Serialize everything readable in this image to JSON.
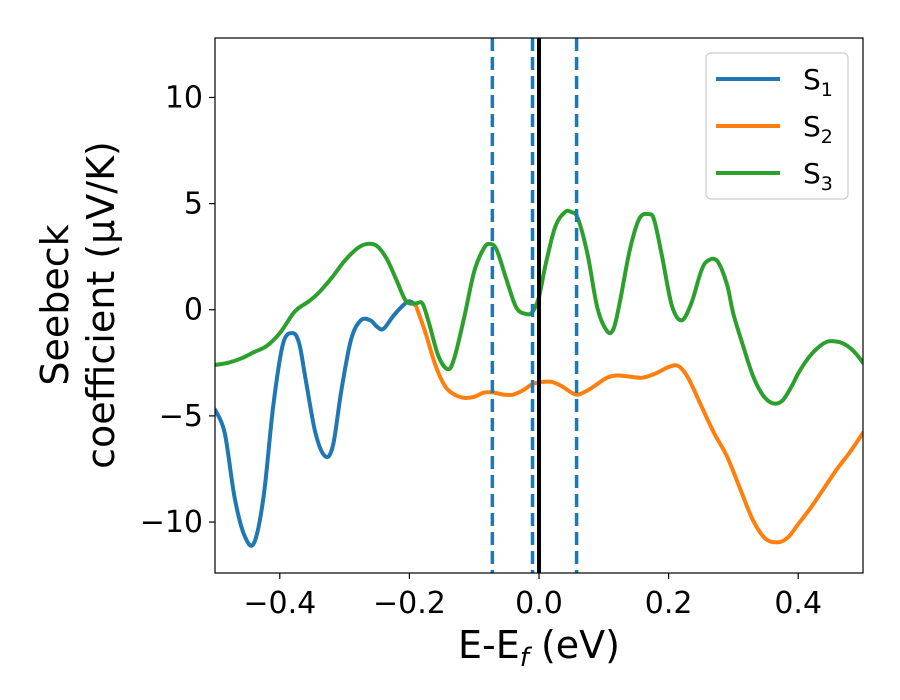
{
  "chart_data": {
    "type": "line",
    "xlabel": {
      "main": "E-E",
      "sub": "f",
      "unit": " (eV)"
    },
    "ylabel": {
      "line1": "Seebeck",
      "line2": "coefficient  (μV/K)"
    },
    "xlim": [
      -0.5,
      0.5
    ],
    "ylim": [
      -12.4,
      12.8
    ],
    "xticks": [
      -0.4,
      -0.2,
      0.0,
      0.2,
      0.4
    ],
    "xtick_labels": [
      "−0.4",
      "−0.2",
      "0.0",
      "0.2",
      "0.4"
    ],
    "yticks": [
      -10,
      -5,
      0,
      5,
      10
    ],
    "ytick_labels": [
      "−10",
      "−5",
      "0",
      "5",
      "10"
    ],
    "grid": false,
    "legend_position": "top-right",
    "vertical_lines": [
      {
        "x": -0.072,
        "style": "dashed",
        "color": "#1f77b4"
      },
      {
        "x": -0.01,
        "style": "dashed",
        "color": "#1f77b4"
      },
      {
        "x": 0.058,
        "style": "dashed",
        "color": "#1f77b4"
      },
      {
        "x": 0.0,
        "style": "solid",
        "color": "#000000"
      }
    ],
    "series": [
      {
        "name": "S",
        "sub": "1",
        "color": "#1f77b4",
        "x": [
          -0.5,
          -0.485,
          -0.47,
          -0.455,
          -0.44,
          -0.425,
          -0.41,
          -0.395,
          -0.38,
          -0.37,
          -0.36,
          -0.345,
          -0.33,
          -0.318,
          -0.305,
          -0.29,
          -0.275,
          -0.26,
          -0.25,
          -0.24,
          -0.225,
          -0.21,
          -0.2,
          -0.19
        ],
        "y": [
          -4.7,
          -5.8,
          -8.8,
          -10.6,
          -11.0,
          -8.8,
          -4.5,
          -1.6,
          -1.1,
          -1.6,
          -3.3,
          -5.8,
          -6.9,
          -6.4,
          -3.8,
          -1.4,
          -0.5,
          -0.5,
          -0.8,
          -0.9,
          -0.3,
          0.2,
          0.4,
          0.2
        ]
      },
      {
        "name": "S",
        "sub": "2",
        "color": "#ff7f0e",
        "x": [
          -0.19,
          -0.175,
          -0.16,
          -0.145,
          -0.13,
          -0.115,
          -0.1,
          -0.085,
          -0.07,
          -0.055,
          -0.04,
          -0.025,
          -0.01,
          0.005,
          0.02,
          0.035,
          0.05,
          0.06,
          0.075,
          0.09,
          0.105,
          0.12,
          0.14,
          0.16,
          0.18,
          0.2,
          0.215,
          0.23,
          0.25,
          0.27,
          0.29,
          0.31,
          0.33,
          0.35,
          0.37,
          0.385,
          0.4,
          0.42,
          0.44,
          0.46,
          0.48,
          0.5
        ],
        "y": [
          0.2,
          -1.1,
          -2.6,
          -3.6,
          -4.0,
          -4.15,
          -4.1,
          -3.9,
          -3.9,
          -4.0,
          -4.0,
          -3.8,
          -3.5,
          -3.4,
          -3.4,
          -3.6,
          -3.9,
          -4.0,
          -3.8,
          -3.5,
          -3.2,
          -3.1,
          -3.15,
          -3.2,
          -3.0,
          -2.7,
          -2.65,
          -3.2,
          -4.5,
          -5.8,
          -6.9,
          -8.4,
          -9.9,
          -10.8,
          -10.95,
          -10.7,
          -10.1,
          -9.3,
          -8.4,
          -7.5,
          -6.7,
          -5.8
        ]
      },
      {
        "name": "S",
        "sub": "3",
        "color": "#2ca02c",
        "x": [
          -0.5,
          -0.48,
          -0.46,
          -0.44,
          -0.42,
          -0.4,
          -0.38,
          -0.37,
          -0.355,
          -0.34,
          -0.32,
          -0.3,
          -0.28,
          -0.265,
          -0.25,
          -0.235,
          -0.22,
          -0.205,
          -0.19,
          -0.18,
          -0.17,
          -0.155,
          -0.14,
          -0.13,
          -0.115,
          -0.1,
          -0.085,
          -0.075,
          -0.065,
          -0.05,
          -0.035,
          -0.02,
          -0.01,
          0.0,
          0.01,
          0.025,
          0.04,
          0.05,
          0.06,
          0.075,
          0.09,
          0.105,
          0.115,
          0.125,
          0.14,
          0.155,
          0.17,
          0.178,
          0.19,
          0.205,
          0.22,
          0.235,
          0.25,
          0.26,
          0.275,
          0.29,
          0.3,
          0.315,
          0.33,
          0.345,
          0.36,
          0.375,
          0.39,
          0.4,
          0.415,
          0.43,
          0.445,
          0.46,
          0.47,
          0.48,
          0.49,
          0.5
        ],
        "y": [
          -2.6,
          -2.5,
          -2.3,
          -2.0,
          -1.7,
          -1.1,
          -0.2,
          0.1,
          0.4,
          0.8,
          1.5,
          2.3,
          2.9,
          3.1,
          3.0,
          2.4,
          1.4,
          0.4,
          0.3,
          0.3,
          -0.6,
          -2.2,
          -2.8,
          -2.2,
          -0.3,
          1.8,
          2.9,
          3.1,
          2.8,
          1.4,
          0.1,
          -0.2,
          -0.1,
          0.6,
          2.1,
          3.9,
          4.6,
          4.6,
          4.3,
          2.6,
          0.1,
          -1.0,
          -0.9,
          0.4,
          2.8,
          4.3,
          4.5,
          4.2,
          2.5,
          0.2,
          -0.5,
          0.3,
          1.8,
          2.3,
          2.3,
          1.2,
          -0.2,
          -1.7,
          -3.1,
          -4.0,
          -4.4,
          -4.3,
          -3.6,
          -3.0,
          -2.3,
          -1.8,
          -1.5,
          -1.5,
          -1.6,
          -1.8,
          -2.1,
          -2.5
        ]
      }
    ]
  }
}
